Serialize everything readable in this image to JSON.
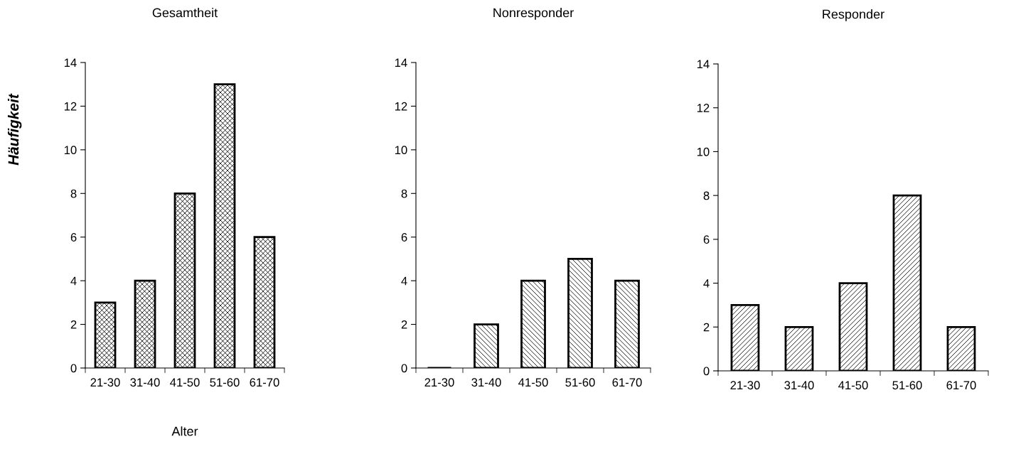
{
  "chart_data": [
    {
      "type": "bar",
      "title": "Gesamtheit",
      "xlabel": "Alter",
      "ylabel": "Häufigkeit",
      "categories": [
        "21-30",
        "31-40",
        "41-50",
        "51-60",
        "61-70"
      ],
      "values": [
        3,
        4,
        8,
        13,
        6
      ],
      "color": "#000000",
      "ylim": [
        0,
        14
      ],
      "yticks": [
        0,
        2,
        4,
        6,
        8,
        10,
        12,
        14
      ],
      "grid": false,
      "legend": false
    },
    {
      "type": "bar",
      "title": "Nonresponder",
      "categories": [
        "21-30",
        "31-40",
        "41-50",
        "51-60",
        "61-70"
      ],
      "values": [
        0,
        2,
        4,
        5,
        4
      ],
      "color": "#000000",
      "ylim": [
        0,
        14
      ],
      "yticks": [
        0,
        2,
        4,
        6,
        8,
        10,
        12,
        14
      ],
      "grid": false,
      "legend": false
    },
    {
      "type": "bar",
      "title": "Responder",
      "categories": [
        "21-30",
        "31-40",
        "41-50",
        "51-60",
        "61-70"
      ],
      "values": [
        3,
        2,
        4,
        8,
        2
      ],
      "color": "#000000",
      "ylim": [
        0,
        14
      ],
      "yticks": [
        0,
        2,
        4,
        6,
        8,
        10,
        12,
        14
      ],
      "grid": false,
      "legend": false
    }
  ]
}
